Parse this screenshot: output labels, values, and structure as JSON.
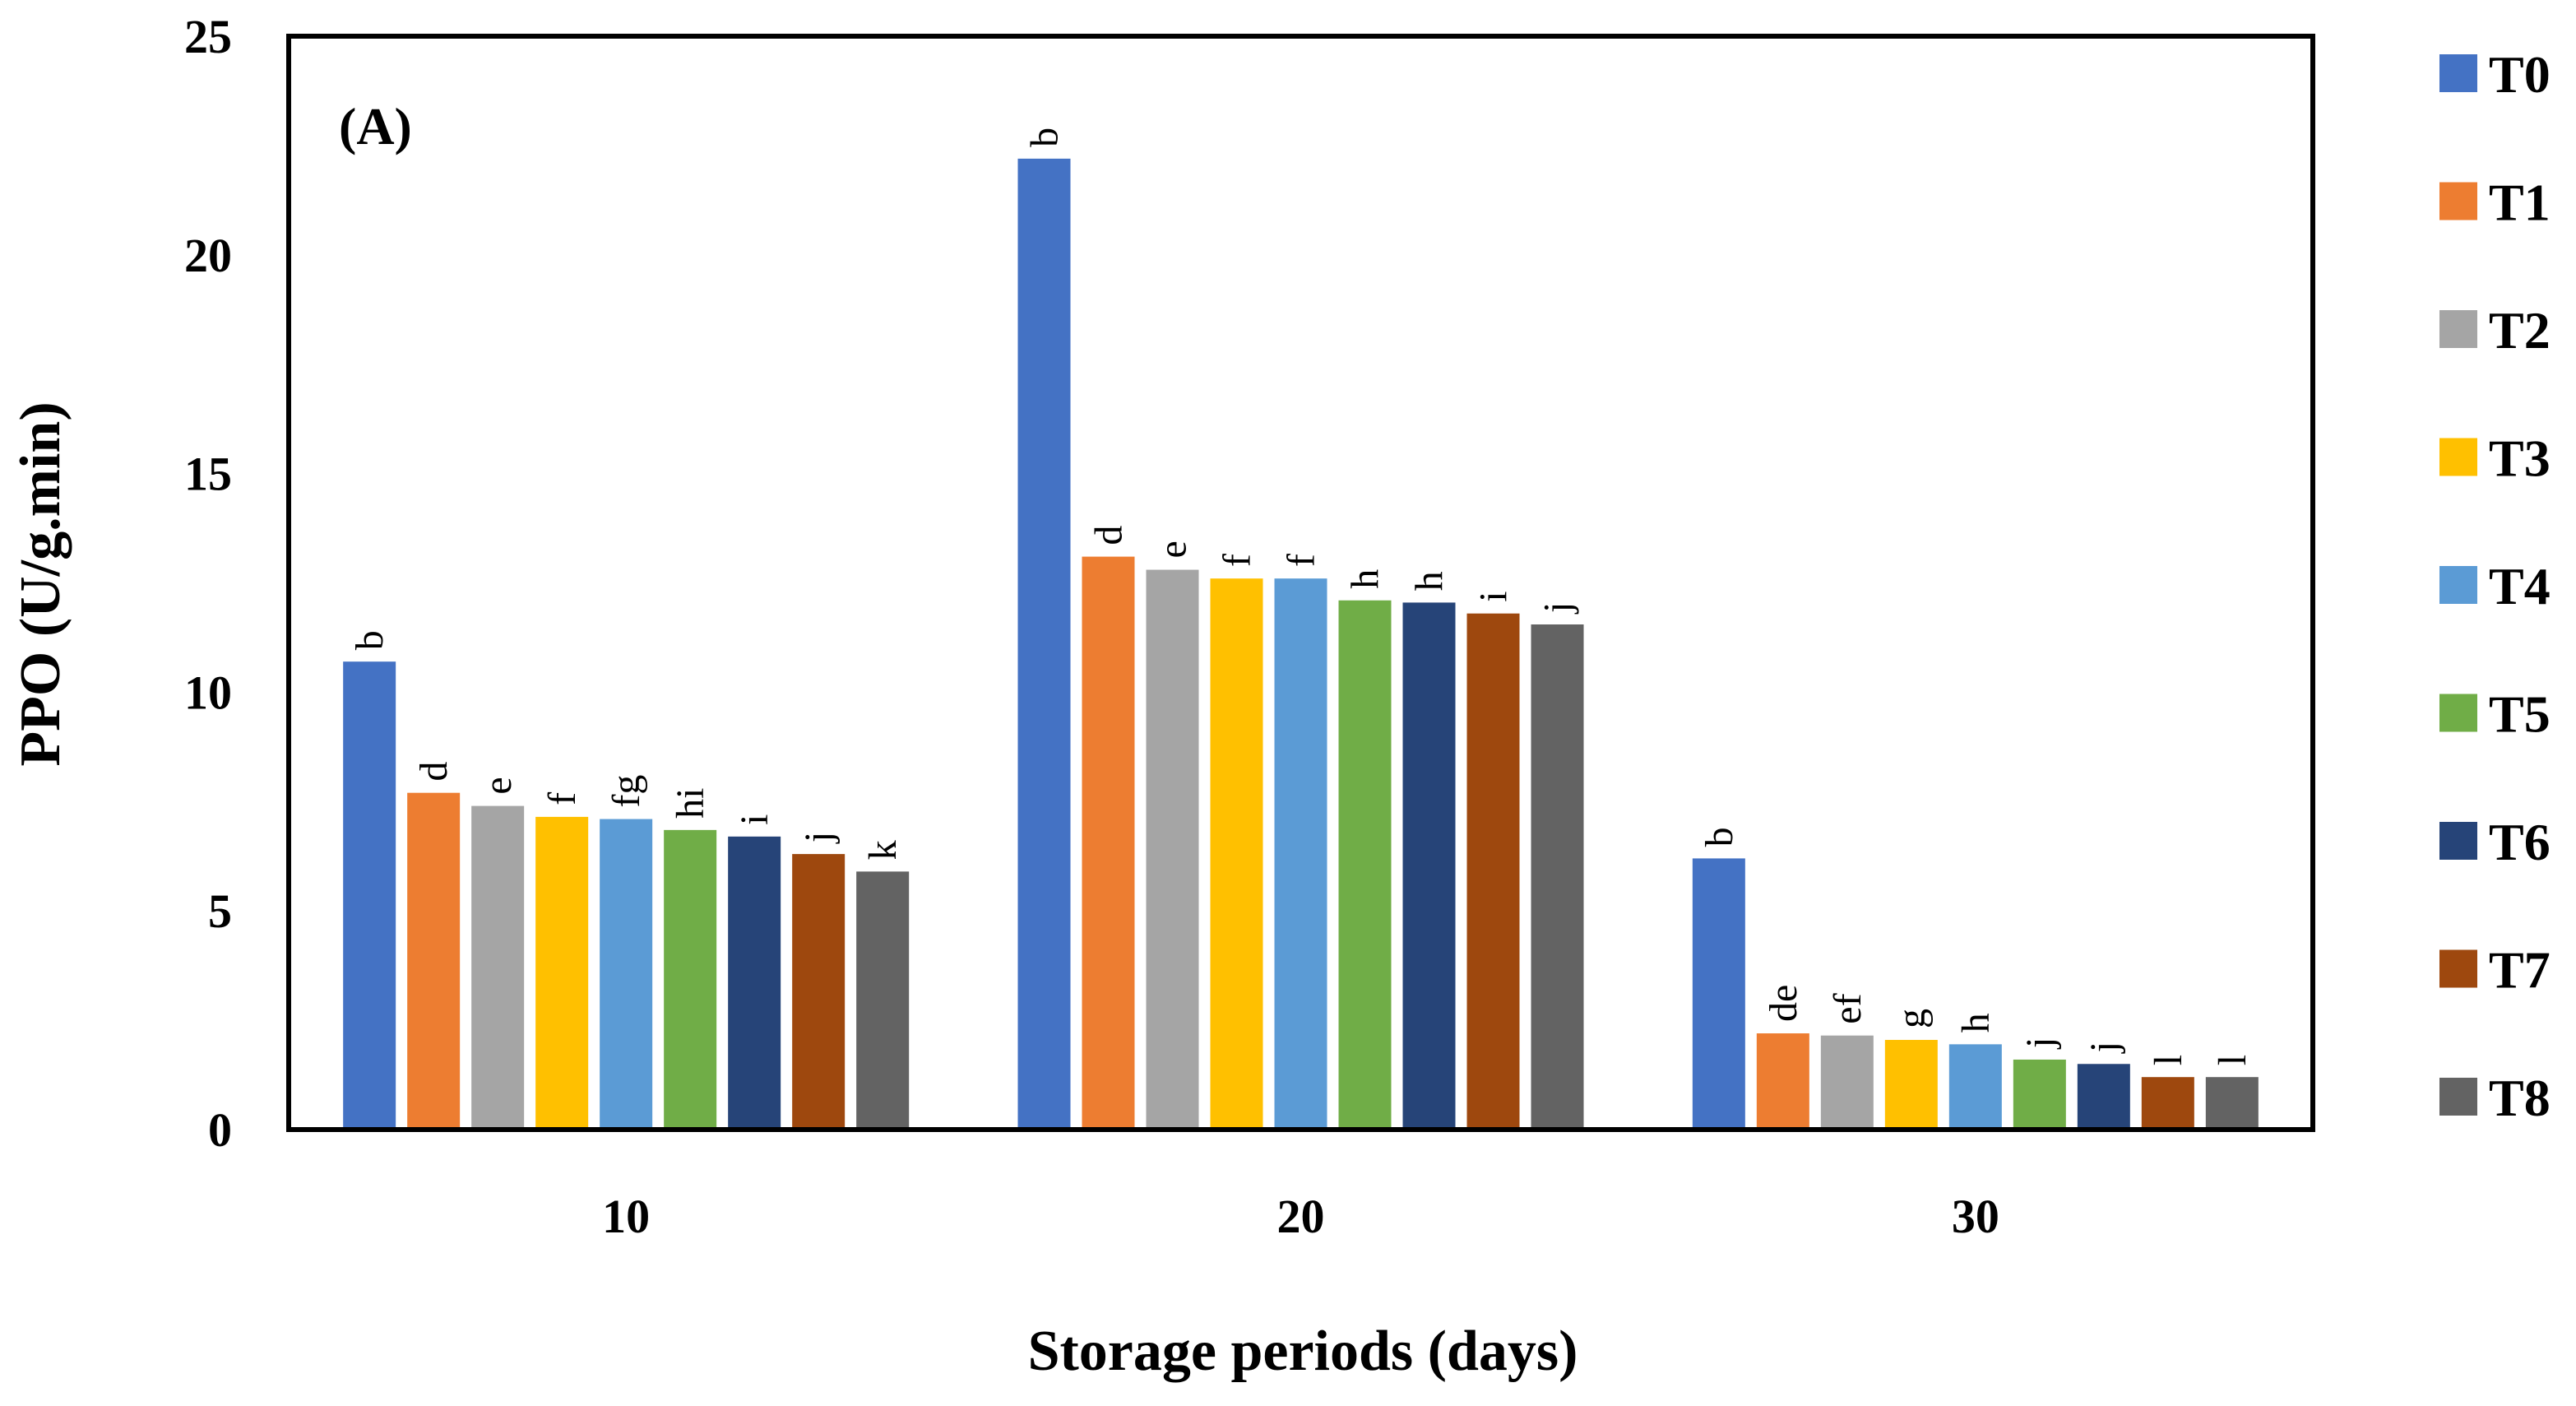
{
  "chart_data": {
    "type": "bar",
    "panel_label": "(A)",
    "xlabel": "Storage periods (days)",
    "ylabel": "PPO (U/g.min)",
    "ylim": [
      0,
      25
    ],
    "yticks": [
      0,
      5,
      10,
      15,
      20,
      25
    ],
    "categories": [
      "10",
      "20",
      "30"
    ],
    "legend_position": "right",
    "series": [
      {
        "name": "T0",
        "color": "#4472C4",
        "values": [
          10.7,
          22.2,
          6.2
        ],
        "labels": [
          "b",
          "b",
          "b"
        ]
      },
      {
        "name": "T1",
        "color": "#ED7D31",
        "values": [
          7.7,
          13.1,
          2.2
        ],
        "labels": [
          "d",
          "d",
          "de"
        ]
      },
      {
        "name": "T2",
        "color": "#A5A5A5",
        "values": [
          7.4,
          12.8,
          2.15
        ],
        "labels": [
          "e",
          "e",
          "ef"
        ]
      },
      {
        "name": "T3",
        "color": "#FFC000",
        "values": [
          7.15,
          12.6,
          2.05
        ],
        "labels": [
          "f",
          "f",
          "g"
        ]
      },
      {
        "name": "T4",
        "color": "#5B9BD5",
        "values": [
          7.1,
          12.6,
          1.95
        ],
        "labels": [
          "fg",
          "f",
          "h"
        ]
      },
      {
        "name": "T5",
        "color": "#70AD47",
        "values": [
          6.85,
          12.1,
          1.6
        ],
        "labels": [
          "hi",
          "h",
          "j"
        ]
      },
      {
        "name": "T6",
        "color": "#264478",
        "values": [
          6.7,
          12.05,
          1.5
        ],
        "labels": [
          "i",
          "h",
          "j"
        ]
      },
      {
        "name": "T7",
        "color": "#9E480E",
        "values": [
          6.3,
          11.8,
          1.2
        ],
        "labels": [
          "j",
          "i",
          "l"
        ]
      },
      {
        "name": "T8",
        "color": "#636363",
        "values": [
          5.9,
          11.55,
          1.2
        ],
        "labels": [
          "k",
          "j",
          "l"
        ]
      }
    ]
  }
}
